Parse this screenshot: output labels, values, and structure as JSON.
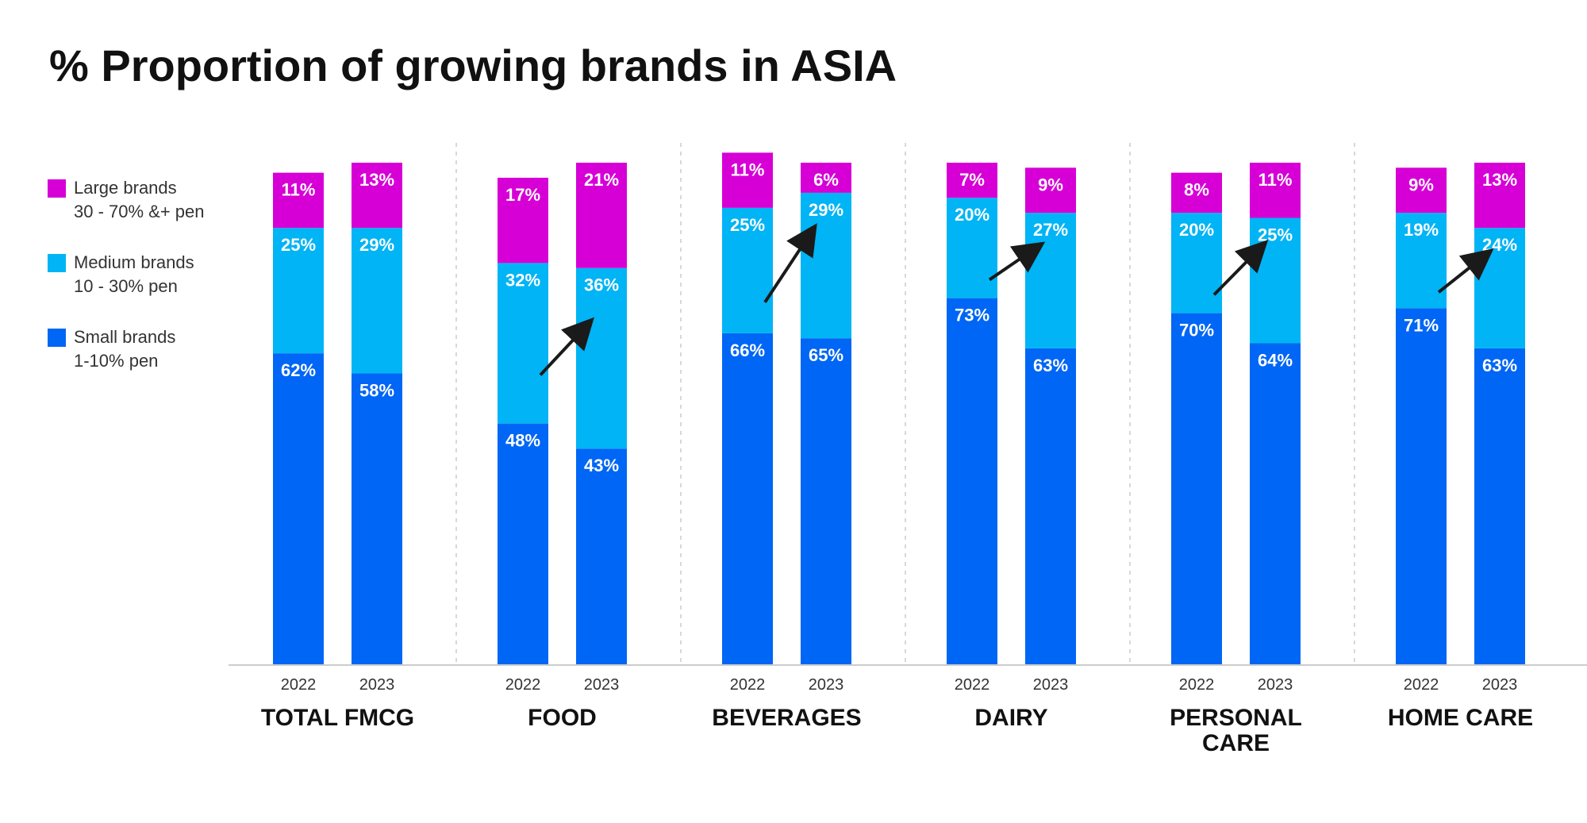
{
  "title": "% Proportion of growing brands in ASIA",
  "colors": {
    "large": "#D600D6",
    "medium": "#00B4F5",
    "small": "#0066F5",
    "arrow": "#1a1a1a",
    "text": "#111111"
  },
  "legend": [
    {
      "key": "large",
      "line1": "Large brands",
      "line2": "30 - 70% &+ pen"
    },
    {
      "key": "medium",
      "line1": "Medium brands",
      "line2": "10 - 30% pen"
    },
    {
      "key": "small",
      "line1": "Small brands",
      "line2": "1-10% pen"
    }
  ],
  "chart_data": {
    "type": "bar",
    "stacked": true,
    "title": "% Proportion of growing brands in ASIA",
    "ylim": [
      0,
      100
    ],
    "series_order": [
      "small",
      "medium",
      "large"
    ],
    "series_labels": {
      "small": "Small brands 1-10% pen",
      "medium": "Medium brands 10 - 30% pen",
      "large": "Large brands 30 - 70% &+ pen"
    },
    "groups": [
      {
        "name": [
          "TOTAL FMCG"
        ],
        "arrow": false,
        "bars": [
          {
            "year": "2022",
            "small": 62,
            "medium": 25,
            "large": 11
          },
          {
            "year": "2023",
            "small": 58,
            "medium": 29,
            "large": 13
          }
        ]
      },
      {
        "name": [
          "FOOD"
        ],
        "arrow": true,
        "bars": [
          {
            "year": "2022",
            "small": 48,
            "medium": 32,
            "large": 17
          },
          {
            "year": "2023",
            "small": 43,
            "medium": 36,
            "large": 21
          }
        ]
      },
      {
        "name": [
          "BEVERAGES"
        ],
        "arrow": true,
        "bars": [
          {
            "year": "2022",
            "small": 66,
            "medium": 25,
            "large": 11
          },
          {
            "year": "2023",
            "small": 65,
            "medium": 29,
            "large": 6
          }
        ]
      },
      {
        "name": [
          "DAIRY"
        ],
        "arrow": true,
        "bars": [
          {
            "year": "2022",
            "small": 73,
            "medium": 20,
            "large": 7
          },
          {
            "year": "2023",
            "small": 63,
            "medium": 27,
            "large": 9
          }
        ]
      },
      {
        "name": [
          "PERSONAL",
          "CARE"
        ],
        "arrow": true,
        "bars": [
          {
            "year": "2022",
            "small": 70,
            "medium": 20,
            "large": 8
          },
          {
            "year": "2023",
            "small": 64,
            "medium": 25,
            "large": 11
          }
        ]
      },
      {
        "name": [
          "HOME CARE"
        ],
        "arrow": true,
        "bars": [
          {
            "year": "2022",
            "small": 71,
            "medium": 19,
            "large": 9
          },
          {
            "year": "2023",
            "small": 63,
            "medium": 24,
            "large": 13
          }
        ]
      }
    ]
  }
}
